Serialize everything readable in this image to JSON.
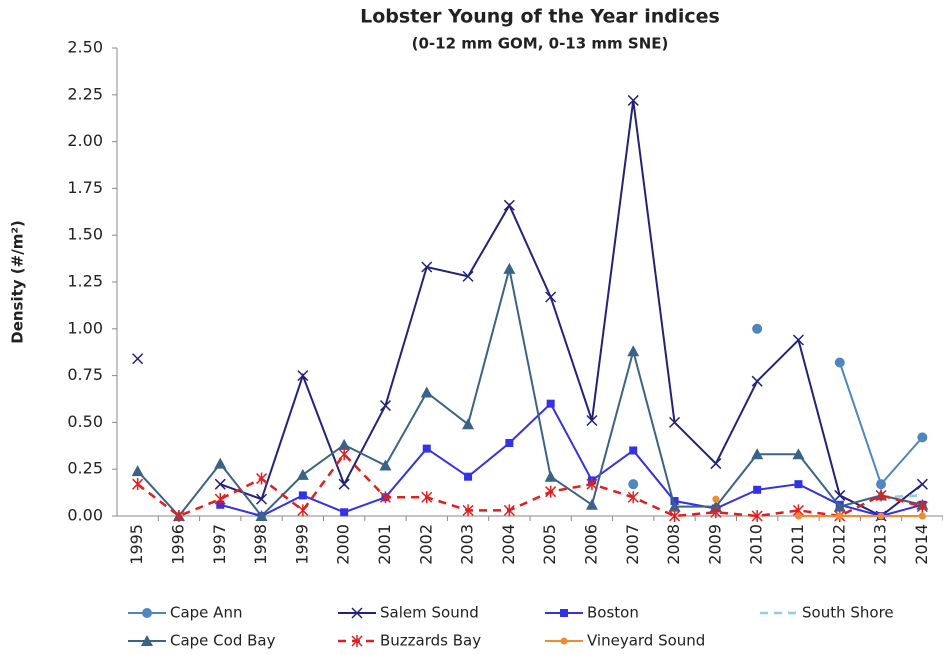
{
  "chart_data": {
    "type": "line",
    "title": "Lobster  Young of the Year indices",
    "subtitle": "(0-12 mm GOM, 0-13 mm SNE)",
    "y_label": "Density (#/m²)",
    "categories": [
      "1995",
      "1996",
      "1997",
      "1998",
      "1999",
      "2000",
      "2001",
      "2002",
      "2003",
      "2004",
      "2005",
      "2006",
      "2007",
      "2008",
      "2009",
      "2010",
      "2011",
      "2012",
      "2013",
      "2014"
    ],
    "ylim": [
      0,
      2.5
    ],
    "yticks": [
      {
        "value": 0,
        "label": "0.00"
      },
      0.25,
      {
        "value": 0.5,
        "label": "0.50"
      },
      0.75,
      {
        "value": 1,
        "label": "1.00"
      },
      1.25,
      {
        "value": 1.5,
        "label": "1.50"
      },
      1.75,
      {
        "value": 2,
        "label": "2.00"
      },
      2.25,
      {
        "value": 2.5,
        "label": "2.50"
      }
    ],
    "series": [
      {
        "name": "Cape Ann",
        "color": "#4f86c0",
        "marker": "circle",
        "dash": "solid",
        "values": [
          null,
          null,
          null,
          null,
          null,
          null,
          null,
          null,
          null,
          null,
          null,
          null,
          0.17,
          null,
          null,
          1.0,
          null,
          0.82,
          0.17,
          0.42
        ]
      },
      {
        "name": "Salem Sound",
        "color": "#22227a",
        "marker": "x",
        "dash": "solid",
        "values": [
          0.84,
          null,
          0.17,
          0.09,
          0.75,
          0.17,
          0.59,
          1.33,
          1.28,
          1.66,
          1.17,
          0.51,
          2.22,
          0.5,
          0.28,
          0.72,
          0.94,
          0.11,
          0.0,
          0.17
        ]
      },
      {
        "name": "Boston",
        "color": "#3232e6",
        "marker": "square",
        "dash": "solid",
        "values": [
          null,
          null,
          0.06,
          0.0,
          0.11,
          0.02,
          0.1,
          0.36,
          0.21,
          0.39,
          0.6,
          0.19,
          0.35,
          0.08,
          0.04,
          0.14,
          0.17,
          0.06,
          0.0,
          0.06
        ]
      },
      {
        "name": "South Shore",
        "color": "#8dd0e6",
        "marker": "none",
        "dash": "dash",
        "values": [
          null,
          null,
          null,
          null,
          null,
          null,
          null,
          null,
          null,
          null,
          null,
          null,
          null,
          null,
          null,
          null,
          null,
          null,
          0.1,
          0.11
        ]
      },
      {
        "name": "Cape Cod Bay",
        "color": "#3a6387",
        "marker": "triangle",
        "dash": "solid",
        "values": [
          0.24,
          0.0,
          0.28,
          0.0,
          0.22,
          0.38,
          0.27,
          0.66,
          0.49,
          1.32,
          0.21,
          0.06,
          0.88,
          0.05,
          0.05,
          0.33,
          0.33,
          0.05,
          0.11,
          0.06
        ]
      },
      {
        "name": "Buzzards Bay",
        "color": "#e02020",
        "marker": "asterisk",
        "dash": "dash",
        "values": [
          0.17,
          0.0,
          0.09,
          0.2,
          0.03,
          0.33,
          0.1,
          0.1,
          0.03,
          0.03,
          0.13,
          0.17,
          0.1,
          0.0,
          0.02,
          0.0,
          0.03,
          0.0,
          0.11,
          0.05
        ]
      },
      {
        "name": "Vineyard Sound",
        "color": "#f28a30",
        "marker": "circle-small",
        "dash": "solid",
        "values": [
          null,
          null,
          null,
          null,
          null,
          null,
          null,
          null,
          null,
          null,
          null,
          null,
          null,
          null,
          0.09,
          null,
          0.0,
          0.0,
          0.0,
          0.0
        ]
      }
    ]
  }
}
